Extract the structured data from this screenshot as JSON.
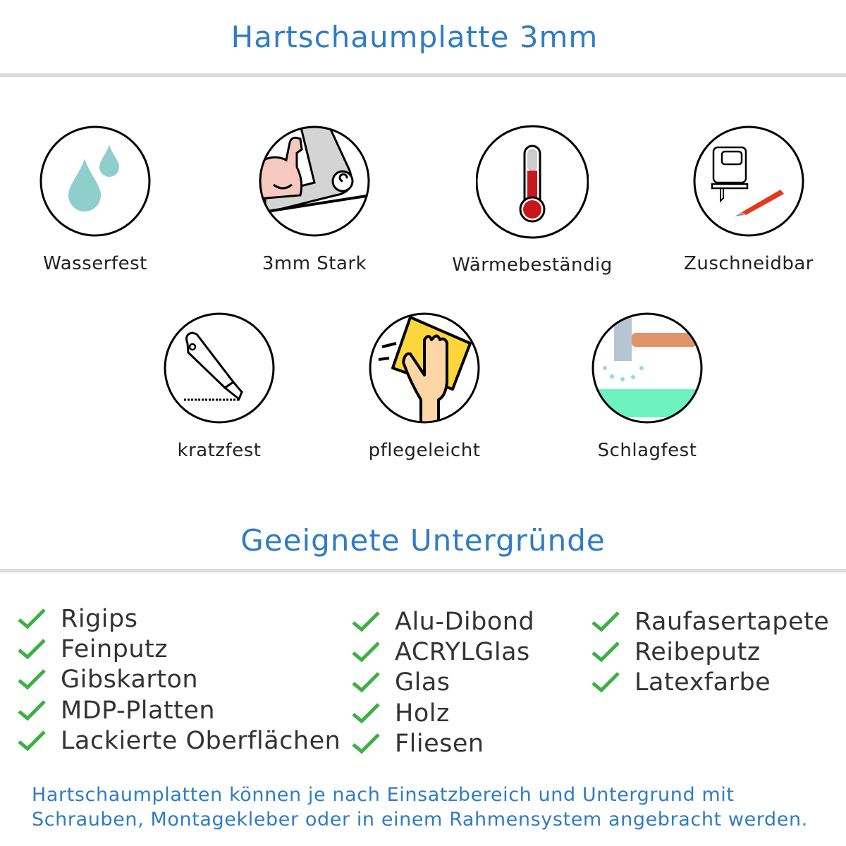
{
  "header": {
    "title": "Hartschaumplatte 3mm"
  },
  "features": [
    {
      "label": "Wasserfest",
      "icon": "water-drops-icon"
    },
    {
      "label": "3mm Stark",
      "icon": "strong-arm-icon"
    },
    {
      "label": "Wärmebeständig",
      "icon": "thermometer-icon"
    },
    {
      "label": "Zuschneidbar",
      "icon": "jigsaw-knife-icon"
    },
    {
      "label": "kratzfest",
      "icon": "cutter-knife-icon"
    },
    {
      "label": "pflegeleicht",
      "icon": "hand-sponge-icon"
    },
    {
      "label": "Schlagfest",
      "icon": "hammer-impact-icon"
    }
  ],
  "surfaces": {
    "title": "Geeignete Untergründe",
    "check_color": "#3cb043",
    "columns": [
      [
        "Rigips",
        "Feinputz",
        "Gibskarton",
        "MDP-Platten",
        "Lackierte Oberflächen"
      ],
      [
        "Alu-Dibond",
        "ACRYLGlas",
        "Glas",
        "Holz",
        "Fliesen"
      ],
      [
        "Raufasertapete",
        "Reibeputz",
        "Latexfarbe"
      ]
    ]
  },
  "footer": {
    "line1": "Hartschaumplatten können je nach Einsatzbereich und Untergrund mit",
    "line2": "Schrauben, Montagekleber oder in einem Rahmensystem angebracht werden."
  }
}
